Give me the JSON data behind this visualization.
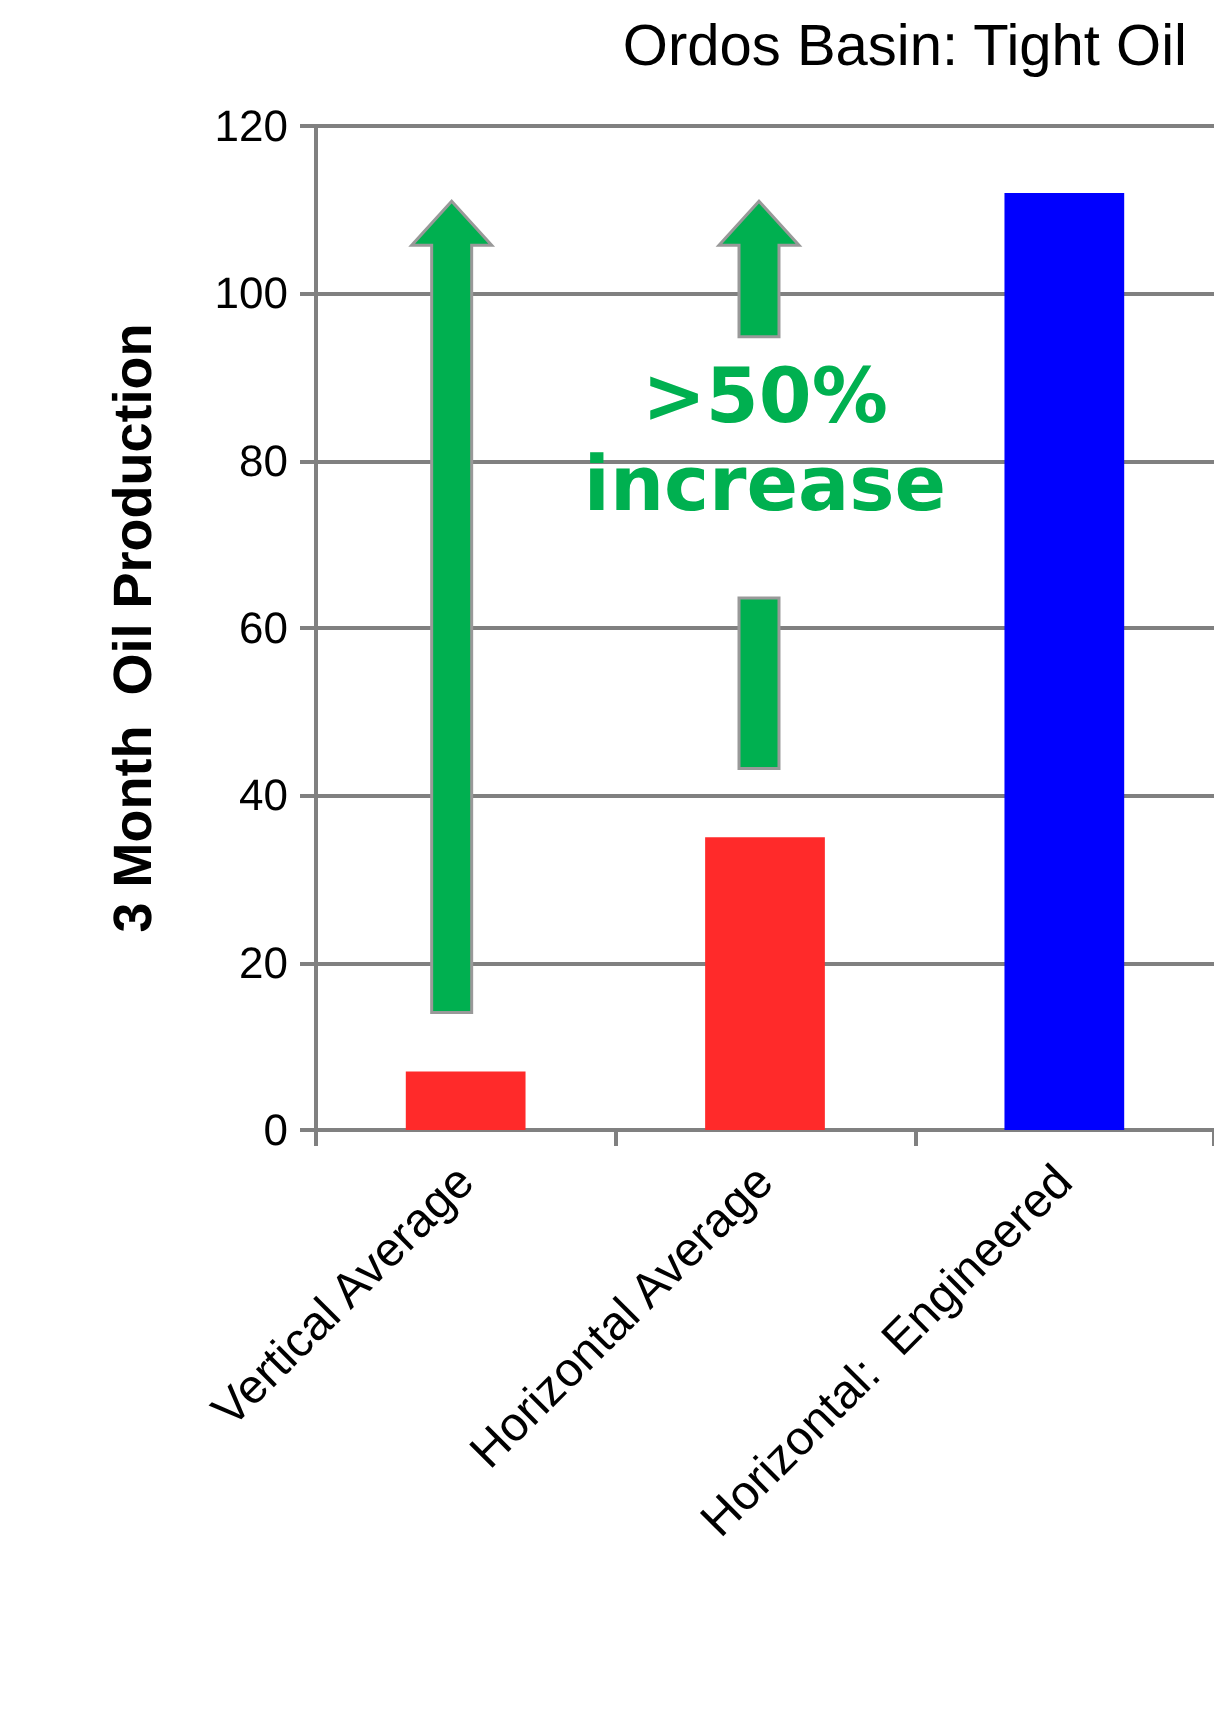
{
  "chart_data": {
    "type": "bar",
    "title": "Ordos Basin: Tight Oil",
    "ylabel": "3 Month  Oil Production",
    "categories": [
      "Vertical Average",
      "Horizontal Average",
      "Horizontal:  Engineered"
    ],
    "values": [
      7,
      35,
      112
    ],
    "colors": [
      "#ff2a2a",
      "#ff2a2a",
      "#0000ff"
    ],
    "ylim": [
      0,
      120
    ],
    "yticks": [
      0,
      20,
      40,
      60,
      80,
      100,
      120
    ],
    "grid": "y",
    "annotations": [
      ">50% increase"
    ]
  }
}
